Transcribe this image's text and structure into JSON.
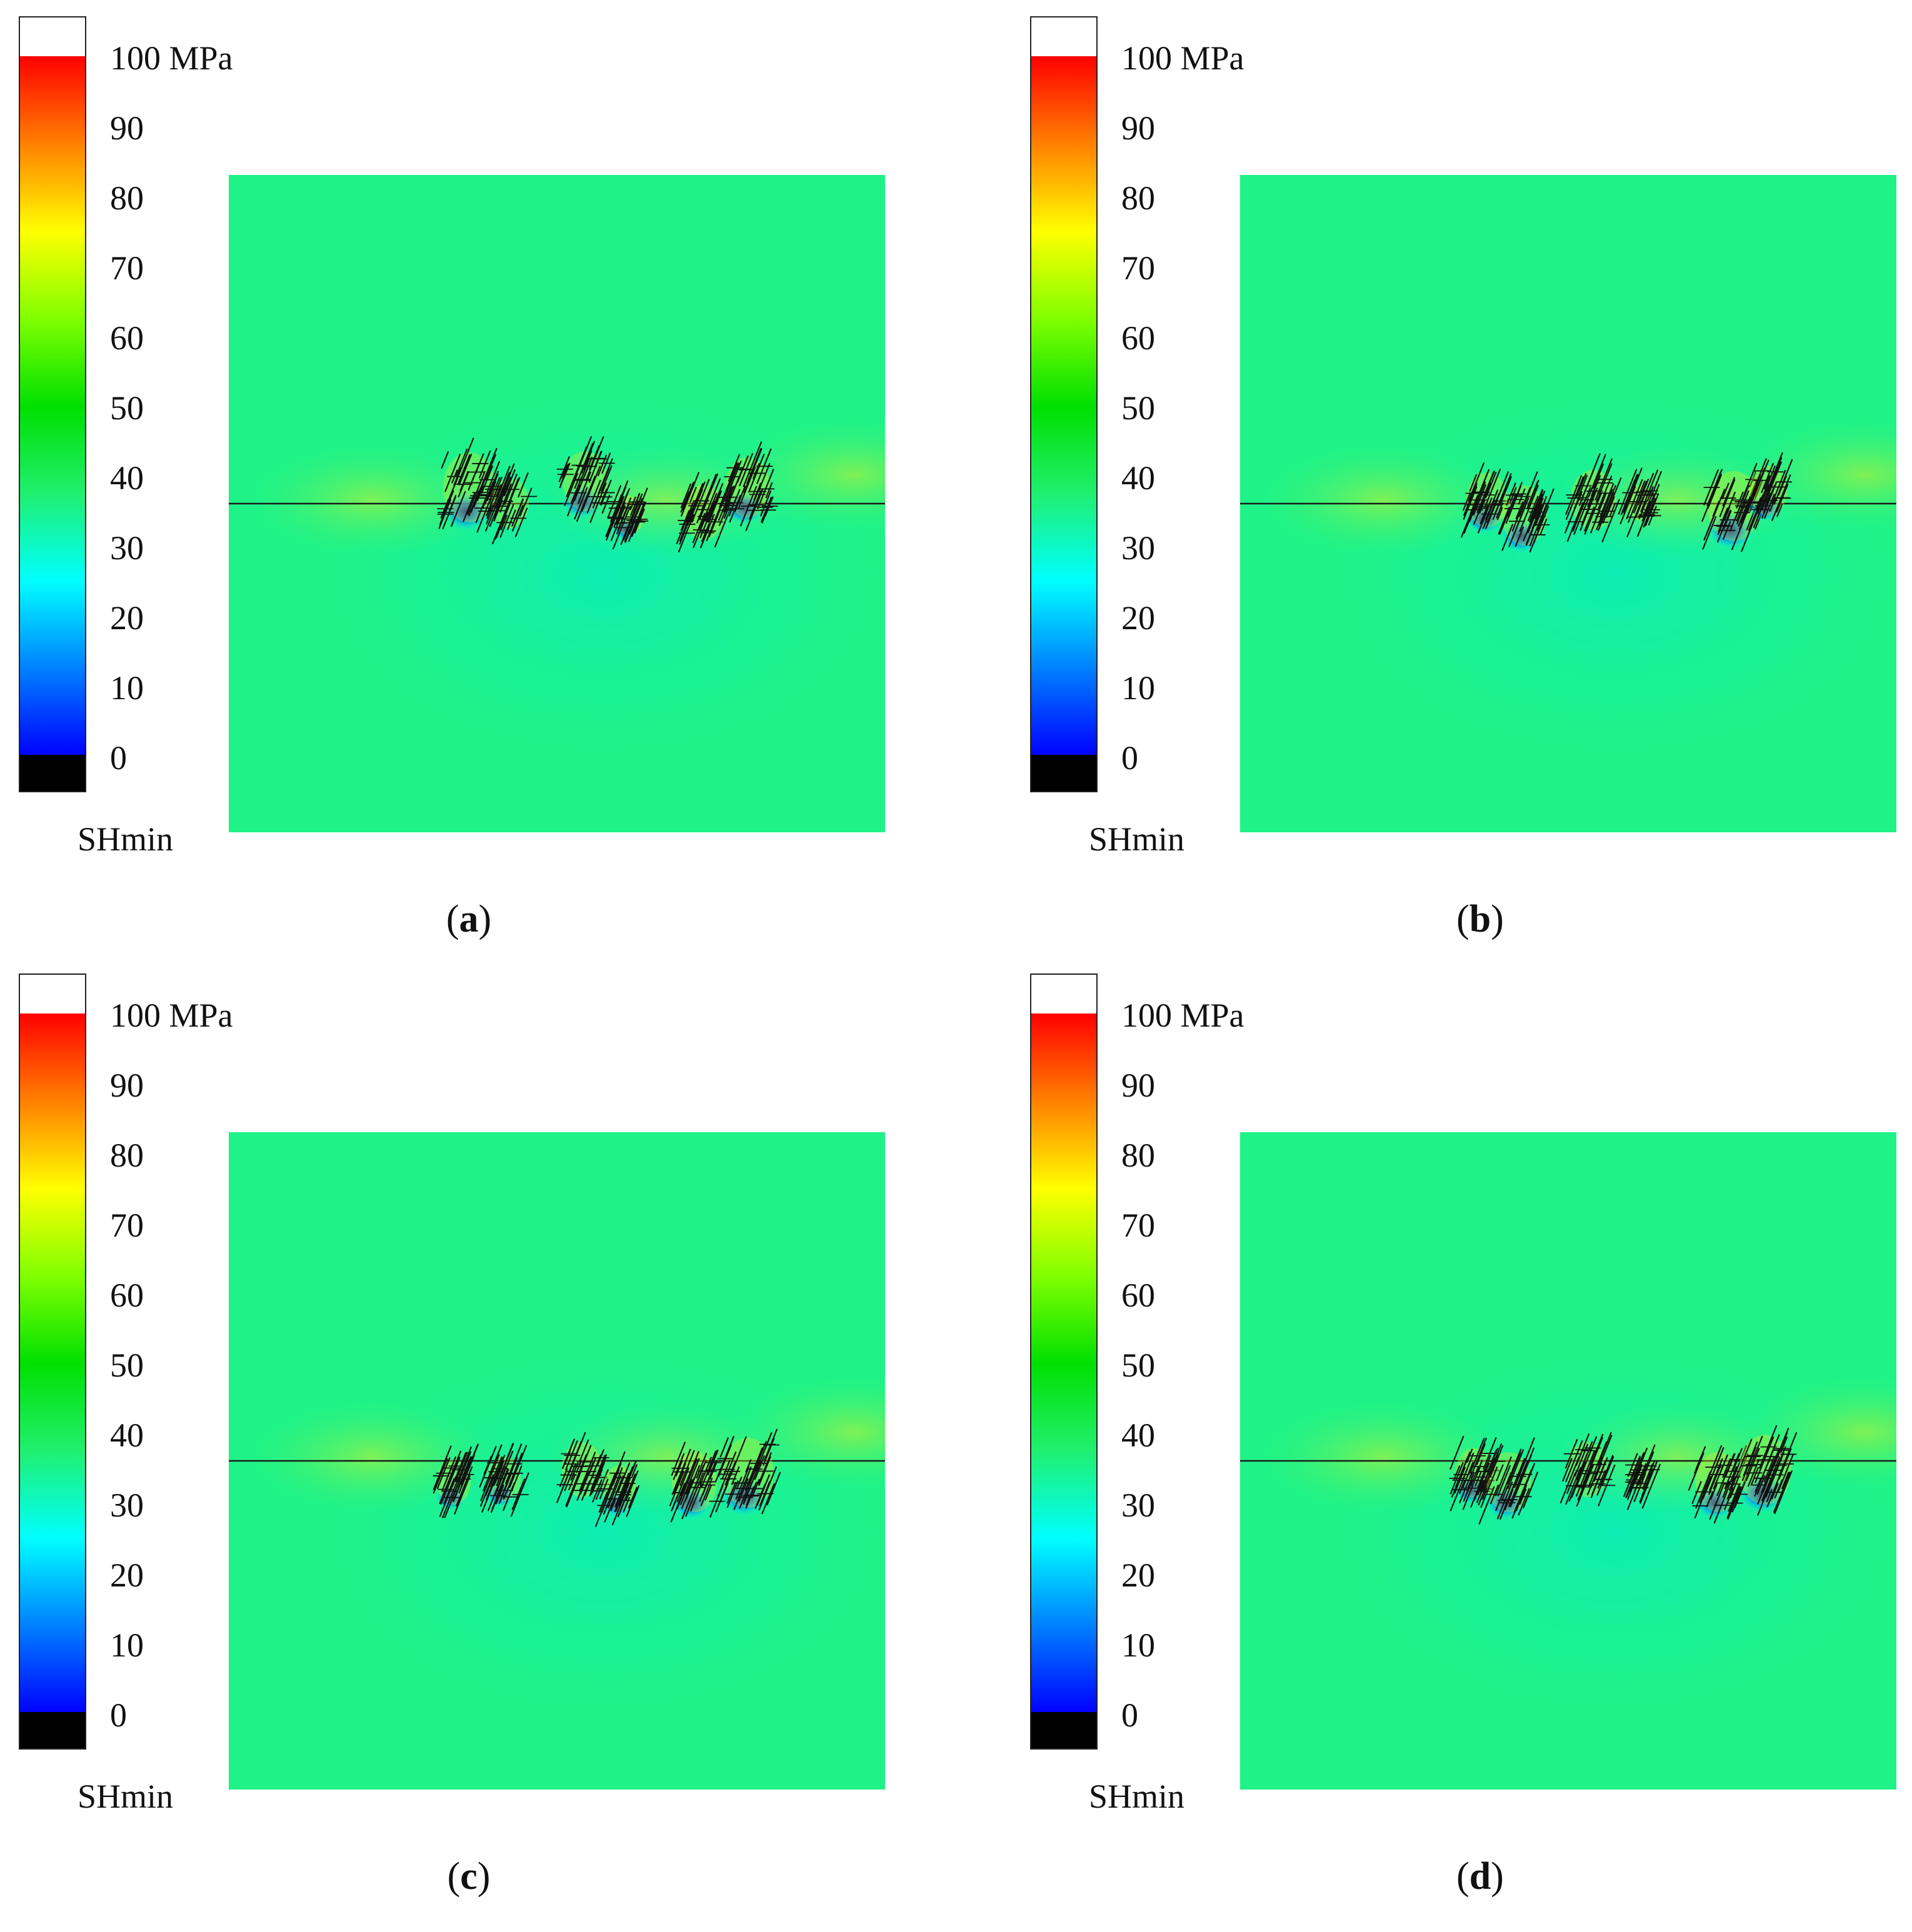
{
  "legend": {
    "variable": "SHmin",
    "ticks": [
      "100 MPa",
      "90",
      "80",
      "70",
      "60",
      "50",
      "40",
      "30",
      "20",
      "10",
      "0"
    ],
    "colors": {
      "over": "#ffffff",
      "under": "#000000",
      "scale": [
        "#ff0000",
        "#ff8000",
        "#ffff00",
        "#80ff00",
        "#00e000",
        "#20f070",
        "#00ffff",
        "#0080ff",
        "#0000ff"
      ]
    }
  },
  "background_color": "#1ff387",
  "panels": [
    {
      "label": "a"
    },
    {
      "label": "b"
    },
    {
      "label": "c"
    },
    {
      "label": "d"
    }
  ]
}
